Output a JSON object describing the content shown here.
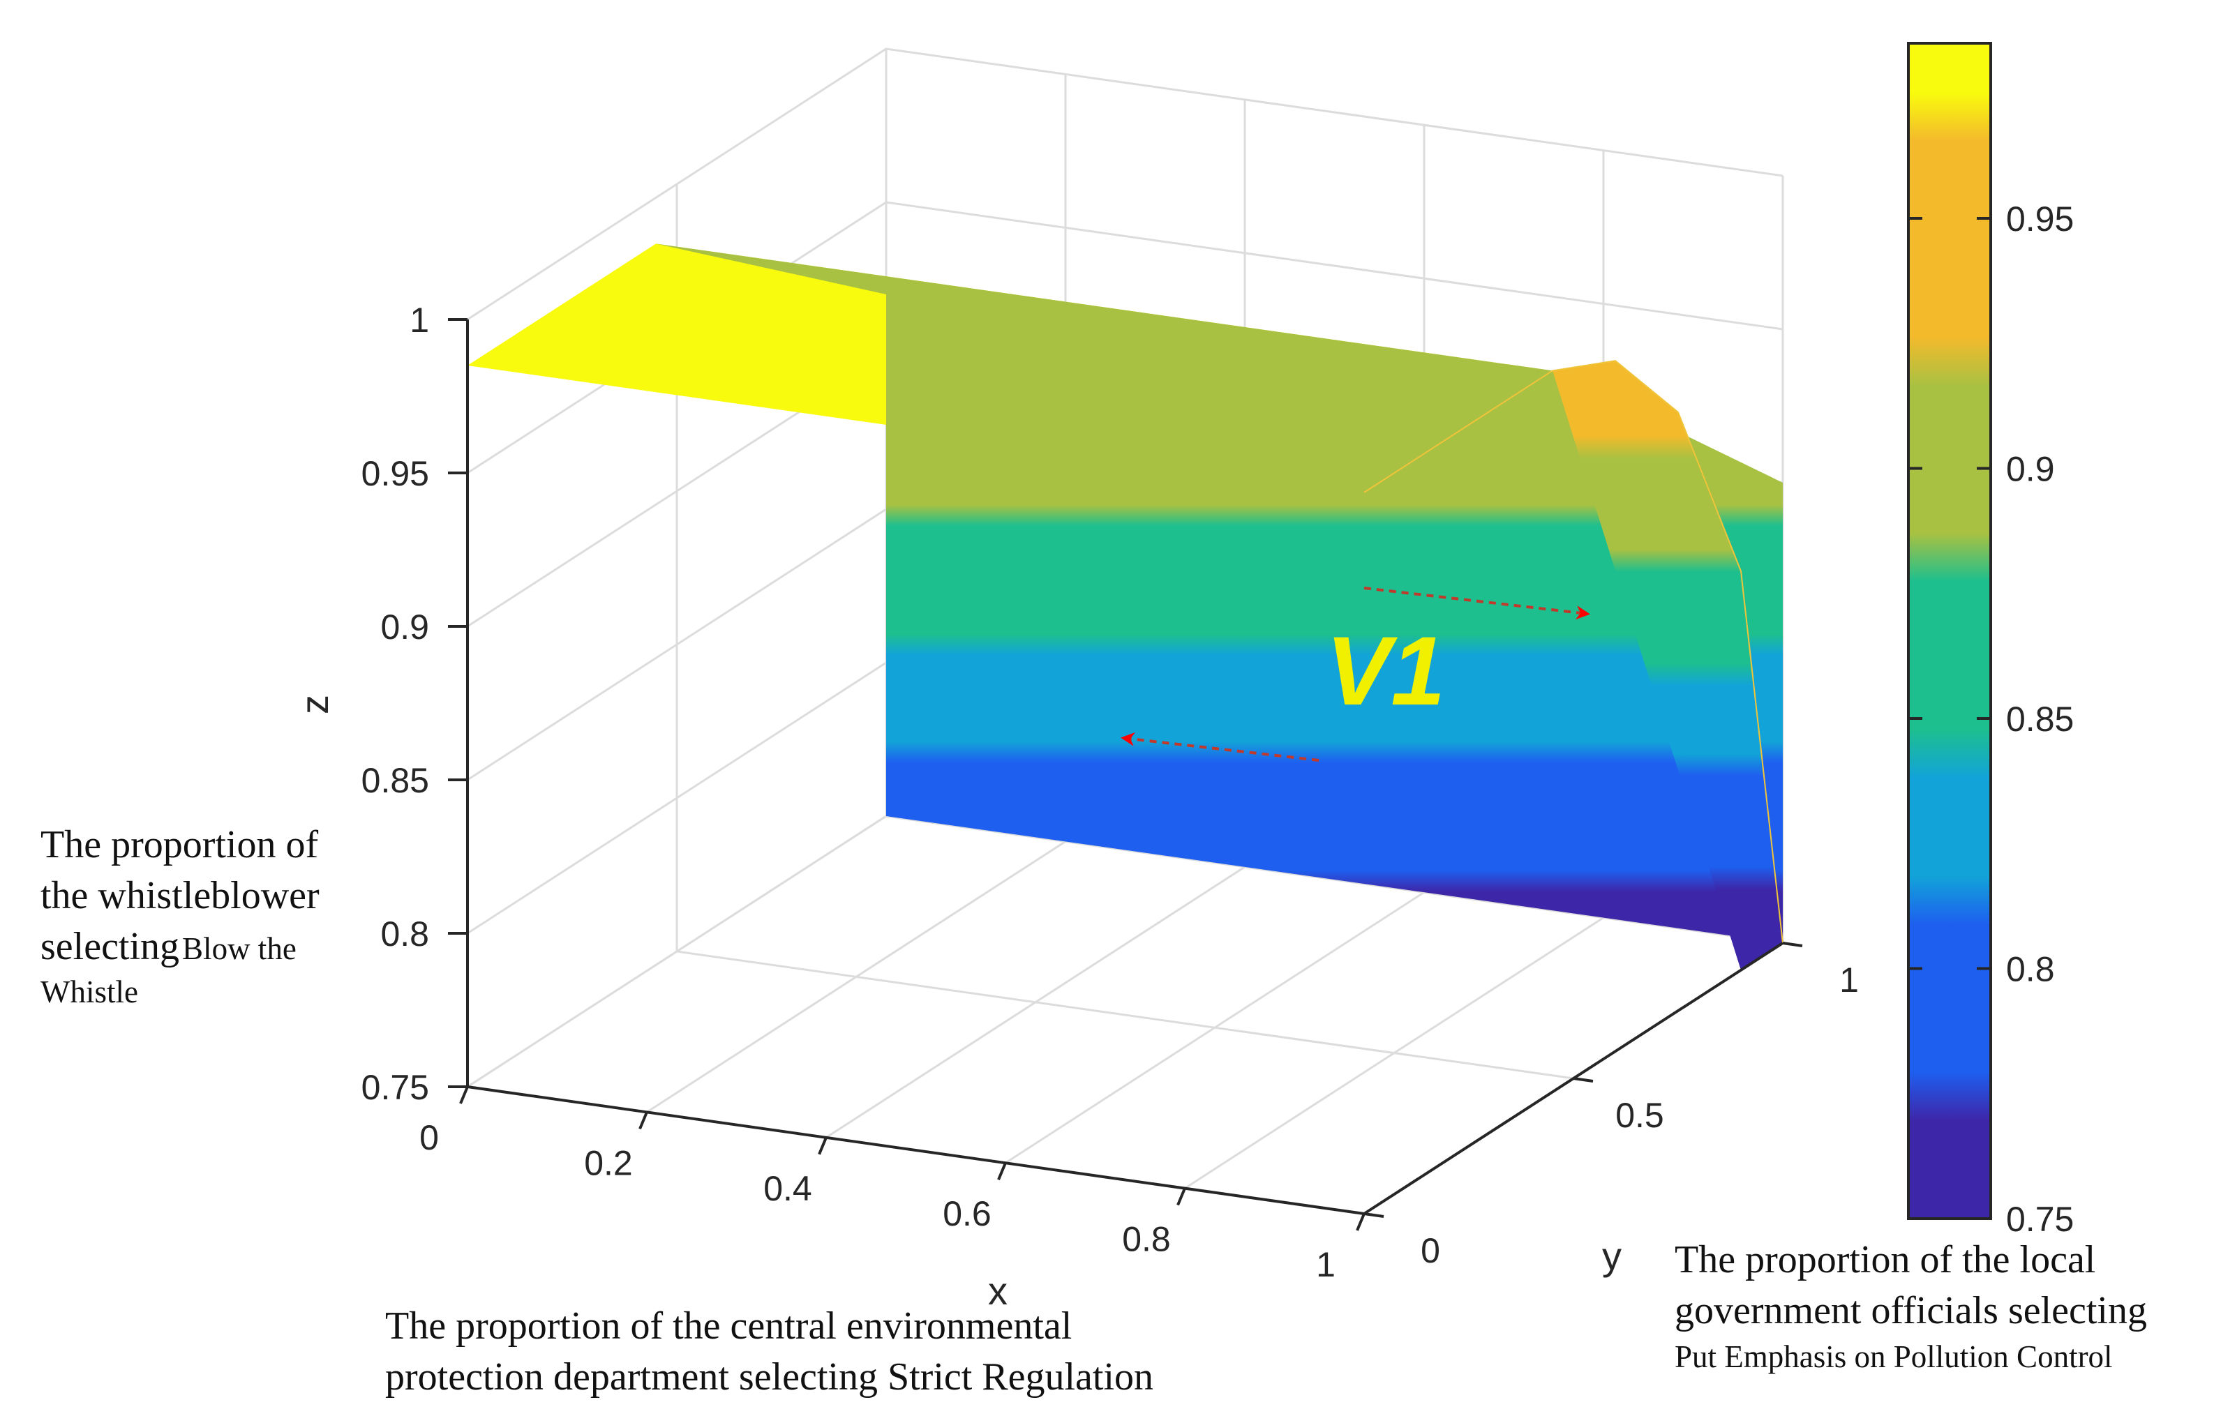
{
  "chart_data": {
    "type": "surface3d",
    "x_axis": {
      "label": "x",
      "range": [
        0,
        1
      ],
      "ticks": [
        "0",
        "0.2",
        "0.4",
        "0.6",
        "0.8",
        "1"
      ]
    },
    "y_axis": {
      "label": "y",
      "range": [
        0,
        1
      ],
      "ticks": [
        "0",
        "0.5",
        "1"
      ]
    },
    "z_axis": {
      "label": "z",
      "range": [
        0.75,
        1
      ],
      "ticks": [
        "0.75",
        "0.8",
        "0.85",
        "0.9",
        "0.95",
        "1"
      ]
    },
    "colorbar": {
      "range": [
        0.75,
        0.985
      ],
      "ticks": [
        "0.75",
        "0.8",
        "0.85",
        "0.9",
        "0.95"
      ],
      "colors": [
        "#3e26a8",
        "#1e5fef",
        "#12a4d8",
        "#1ebf8e",
        "#a8c142",
        "#f3ba2c",
        "#f9fb0e"
      ]
    },
    "surface": {
      "description": "z stays at its maximum ~0.985 for y from 0 to about 0.45, then decreases smoothly to 0.75 at y = 1; constant along x",
      "z_max": 0.985,
      "z_min": 0.75,
      "y_knee": 0.45,
      "profile": {
        "y": [
          0,
          0.45,
          0.6,
          0.75,
          0.9,
          1.0
        ],
        "z": [
          0.985,
          0.985,
          0.975,
          0.945,
          0.88,
          0.75
        ]
      }
    },
    "annotation_label": "V1",
    "arrows": [
      {
        "direction": "right",
        "color": "#ff0000"
      },
      {
        "direction": "left",
        "color": "#ff0000"
      }
    ]
  },
  "captions": {
    "z": {
      "line1": "The proportion of",
      "line2": "the  whistleblower",
      "line3_big": "selecting",
      "line3_small": "Blow the",
      "line4_small": "Whistle"
    },
    "x": {
      "line1": "The proportion of the central environmental",
      "line2": "protection department selecting Strict Regulation"
    },
    "y": {
      "line1": "The proportion of the local",
      "line2": "government officials selecting",
      "line3": "Put Emphasis on Pollution Control"
    }
  }
}
